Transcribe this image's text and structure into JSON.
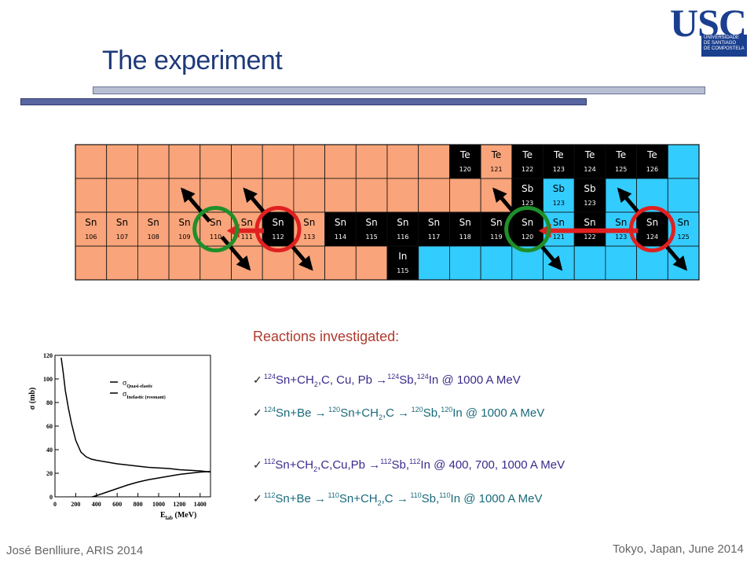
{
  "title": "The experiment",
  "logo": {
    "letters": "USC",
    "line1": "UNIVERSIDADE",
    "line2": "DE SANTIAGO",
    "line3": "DE COMPOSTELA"
  },
  "nuclide_chart": {
    "columns": 20,
    "rows": 4,
    "colors": {
      "proton_rich": "#f9a47a",
      "neutron_rich": "#33ccff",
      "stable": "#000000",
      "arrow": "#000000",
      "red_circle": "#e02020",
      "green_circle": "#1f8f2a",
      "red_arrow": "#e02020"
    },
    "cells": [
      {
        "row": 0,
        "col": 12,
        "el": "Te",
        "a": "120",
        "type": "stable"
      },
      {
        "row": 0,
        "col": 13,
        "el": "Te",
        "a": "121",
        "type": "proton_rich"
      },
      {
        "row": 0,
        "col": 14,
        "el": "Te",
        "a": "122",
        "type": "stable"
      },
      {
        "row": 0,
        "col": 15,
        "el": "Te",
        "a": "123",
        "type": "stable"
      },
      {
        "row": 0,
        "col": 16,
        "el": "Te",
        "a": "124",
        "type": "stable"
      },
      {
        "row": 0,
        "col": 17,
        "el": "Te",
        "a": "125",
        "type": "stable"
      },
      {
        "row": 0,
        "col": 18,
        "el": "Te",
        "a": "126",
        "type": "stable"
      },
      {
        "row": 1,
        "col": 14,
        "el": "Sb",
        "a": "123",
        "type": "stable"
      },
      {
        "row": 1,
        "col": 15,
        "el": "Sb",
        "a": "123",
        "type": "neutron_rich"
      },
      {
        "row": 1,
        "col": 16,
        "el": "Sb",
        "a": "123",
        "type": "stable"
      },
      {
        "row": 2,
        "col": 0,
        "el": "Sn",
        "a": "106",
        "type": "proton_rich"
      },
      {
        "row": 2,
        "col": 1,
        "el": "Sn",
        "a": "107",
        "type": "proton_rich"
      },
      {
        "row": 2,
        "col": 2,
        "el": "Sn",
        "a": "108",
        "type": "proton_rich"
      },
      {
        "row": 2,
        "col": 3,
        "el": "Sn",
        "a": "109",
        "type": "proton_rich"
      },
      {
        "row": 2,
        "col": 4,
        "el": "Sn",
        "a": "110",
        "type": "proton_rich"
      },
      {
        "row": 2,
        "col": 5,
        "el": "Sn",
        "a": "111",
        "type": "proton_rich"
      },
      {
        "row": 2,
        "col": 6,
        "el": "Sn",
        "a": "112",
        "type": "stable"
      },
      {
        "row": 2,
        "col": 7,
        "el": "Sn",
        "a": "113",
        "type": "proton_rich"
      },
      {
        "row": 2,
        "col": 8,
        "el": "Sn",
        "a": "114",
        "type": "stable"
      },
      {
        "row": 2,
        "col": 9,
        "el": "Sn",
        "a": "115",
        "type": "stable"
      },
      {
        "row": 2,
        "col": 10,
        "el": "Sn",
        "a": "116",
        "type": "stable"
      },
      {
        "row": 2,
        "col": 11,
        "el": "Sn",
        "a": "117",
        "type": "stable"
      },
      {
        "row": 2,
        "col": 12,
        "el": "Sn",
        "a": "118",
        "type": "stable"
      },
      {
        "row": 2,
        "col": 13,
        "el": "Sn",
        "a": "119",
        "type": "stable"
      },
      {
        "row": 2,
        "col": 14,
        "el": "Sn",
        "a": "120",
        "type": "stable"
      },
      {
        "row": 2,
        "col": 15,
        "el": "Sn",
        "a": "121",
        "type": "neutron_rich"
      },
      {
        "row": 2,
        "col": 16,
        "el": "Sn",
        "a": "122",
        "type": "stable"
      },
      {
        "row": 2,
        "col": 17,
        "el": "Sn",
        "a": "123",
        "type": "neutron_rich"
      },
      {
        "row": 2,
        "col": 18,
        "el": "Sn",
        "a": "124",
        "type": "stable"
      },
      {
        "row": 2,
        "col": 19,
        "el": "Sn",
        "a": "125",
        "type": "neutron_rich"
      },
      {
        "row": 3,
        "col": 10,
        "el": "In",
        "a": "115",
        "type": "stable"
      }
    ],
    "circles": [
      {
        "row": 2,
        "col": 4,
        "color": "green_circle"
      },
      {
        "row": 2,
        "col": 6,
        "color": "red_circle"
      },
      {
        "row": 2,
        "col": 14,
        "color": "green_circle"
      },
      {
        "row": 2,
        "col": 18,
        "color": "red_circle"
      }
    ],
    "arrows": [
      {
        "row": 2,
        "col": 4,
        "dir": "up-left"
      },
      {
        "row": 2,
        "col": 4,
        "dir": "down-right"
      },
      {
        "row": 2,
        "col": 6,
        "dir": "up-left"
      },
      {
        "row": 2,
        "col": 6,
        "dir": "down-right"
      },
      {
        "row": 2,
        "col": 14,
        "dir": "up-left"
      },
      {
        "row": 2,
        "col": 14,
        "dir": "down-right"
      },
      {
        "row": 2,
        "col": 18,
        "dir": "up-left"
      },
      {
        "row": 2,
        "col": 18,
        "dir": "down-right"
      }
    ],
    "red_arrows": [
      {
        "row": 2,
        "from_col": 6,
        "to_col": 4
      },
      {
        "row": 2,
        "from_col": 18,
        "to_col": 14
      }
    ]
  },
  "chart_data": {
    "type": "line",
    "xlabel_main": "E",
    "xlabel_sub": "lab",
    "xlabel_unit": " (MeV)",
    "ylabel": "σ (mb)",
    "xlim": [
      0,
      1500
    ],
    "ylim": [
      0,
      120
    ],
    "xticks": [
      0,
      200,
      400,
      600,
      800,
      1000,
      1200,
      1400
    ],
    "yticks": [
      0,
      20,
      40,
      60,
      80,
      100,
      120
    ],
    "series": [
      {
        "name_main": "σ",
        "name_sub": "Quasi-elastic",
        "style": "solid",
        "x": [
          60,
          80,
          100,
          130,
          160,
          200,
          250,
          300,
          350,
          400,
          500,
          600,
          700,
          800,
          900,
          1000,
          1100,
          1200,
          1300,
          1400,
          1500
        ],
        "y": [
          118,
          105,
          90,
          75,
          62,
          48,
          38,
          34,
          32,
          31,
          29.5,
          28,
          27,
          26,
          25,
          24.5,
          24,
          23,
          22.5,
          22,
          21
        ]
      },
      {
        "name_main": "σ",
        "name_sub": "Inelastic (resonant)",
        "style": "solid",
        "x": [
          360,
          400,
          500,
          600,
          700,
          800,
          900,
          1000,
          1100,
          1200,
          1300,
          1400,
          1500
        ],
        "y": [
          0,
          1,
          4,
          7,
          10,
          12.5,
          14.5,
          16,
          17.5,
          19,
          20,
          21,
          21.5
        ]
      }
    ]
  },
  "reactions": {
    "title": "Reactions investigated:",
    "check": "✓",
    "r1": {
      "a": "124",
      "b": "Sn+CH",
      "c": "2",
      "d": ",C,  Cu, Pb ",
      "arrow": "→",
      "e": "124",
      "f": "Sb,",
      "g": "124",
      "h": "In @ 1000 A MeV"
    },
    "r2": {
      "a": "124",
      "b": "Sn+Be ",
      "arrow1": "→",
      "c": " 120",
      "d": "Sn+CH",
      "e": "2",
      "f": ",C ",
      "arrow2": "→",
      "g": " 120",
      "h": "Sb,",
      "i": "120",
      "j": "In @ 1000 A MeV"
    },
    "r3": {
      "a": "112",
      "b": "Sn+CH",
      "c": "2",
      "d": ",C,Cu,Pb ",
      "arrow": "→",
      "e": "112",
      "f": "Sb,",
      "g": "112",
      "h": "In @ 400, 700, 1000 A MeV"
    },
    "r4": {
      "a": "112",
      "b": "Sn+Be ",
      "arrow1": "→",
      "c": " 110",
      "d": "Sn+CH",
      "e": "2",
      "f": ",C ",
      "arrow2": "→",
      "g": " 110",
      "h": "Sb,",
      "i": "110",
      "j": "In @ 1000 A MeV"
    }
  },
  "footer": {
    "left": "José Benlliure, ARIS 2014",
    "right": "Tokyo, Japan, June 2014"
  }
}
